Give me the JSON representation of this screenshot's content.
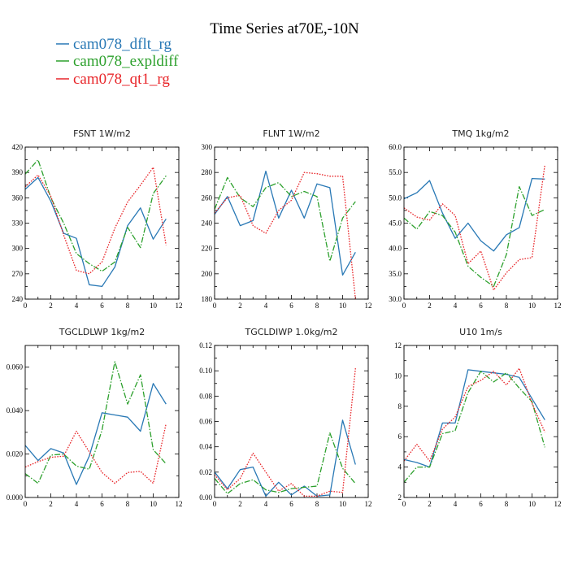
{
  "chart_data": {
    "title": "Time Series at70E,-10N",
    "legend": [
      {
        "label": "cam078_dflt_rg",
        "color": "#2878b5",
        "dash": "solid"
      },
      {
        "label": "cam078_expldiff",
        "color": "#2ca02c",
        "dash": "dashdot"
      },
      {
        "label": "cam078_qt1_rg",
        "color": "#e8262a",
        "dash": "dotted"
      }
    ],
    "panels": [
      {
        "type": "line",
        "title": "FSNT   1W/m2",
        "xlim": [
          0,
          12
        ],
        "xticks": [
          0,
          2,
          4,
          6,
          8,
          10,
          12
        ],
        "ylim": [
          240,
          420
        ],
        "yticks": [
          240,
          270,
          300,
          330,
          360,
          390,
          420
        ],
        "ytick_labels": [
          "240",
          "270",
          "300",
          "330",
          "360",
          "390",
          "420"
        ],
        "x": [
          0,
          1,
          2,
          3,
          4,
          5,
          6,
          7,
          8,
          9,
          10,
          11
        ],
        "series": [
          {
            "name": "cam078_dflt_rg",
            "values": [
              370,
              384,
              356,
              318,
              312,
              257,
              255,
              278,
              327,
              348,
              311,
              335
            ]
          },
          {
            "name": "cam078_expldiff",
            "values": [
              388,
              405,
              360,
              330,
              294,
              282,
              273,
              284,
              325,
              301,
              365,
              386
            ]
          },
          {
            "name": "cam078_qt1_rg",
            "values": [
              373,
              387,
              362,
              316,
              274,
              270,
              284,
              324,
              355,
              375,
              396,
              304
            ]
          }
        ]
      },
      {
        "type": "line",
        "title": "FLNT   1W/m2",
        "xlim": [
          0,
          12
        ],
        "xticks": [
          0,
          2,
          4,
          6,
          8,
          10,
          12
        ],
        "ylim": [
          180,
          300
        ],
        "yticks": [
          180,
          200,
          220,
          240,
          260,
          280,
          300
        ],
        "ytick_labels": [
          "180",
          "200",
          "220",
          "240",
          "260",
          "280",
          "300"
        ],
        "x": [
          0,
          1,
          2,
          3,
          4,
          5,
          6,
          7,
          8,
          9,
          10,
          11
        ],
        "series": [
          {
            "name": "cam078_dflt_rg",
            "values": [
              247,
              261,
              238,
              242,
              281,
              244,
              266,
              244,
              271,
              268,
              199,
              217
            ]
          },
          {
            "name": "cam078_expldiff",
            "values": [
              251,
              276,
              260,
              253,
              268,
              272,
              261,
              265,
              261,
              210,
              244,
              257
            ]
          },
          {
            "name": "cam078_qt1_rg",
            "values": [
              248,
              260,
              262,
              238,
              232,
              250,
              258,
              280,
              279,
              277,
              277,
              180
            ]
          }
        ]
      },
      {
        "type": "line",
        "title": "TMQ   1kg/m2",
        "xlim": [
          0,
          12
        ],
        "xticks": [
          0,
          2,
          4,
          6,
          8,
          10,
          12
        ],
        "ylim": [
          30,
          60
        ],
        "yticks": [
          30,
          35,
          40,
          45,
          50,
          55,
          60
        ],
        "ytick_labels": [
          "30.0",
          "35.0",
          "40.0",
          "45.0",
          "50.0",
          "55.0",
          "60.0"
        ],
        "x": [
          0,
          1,
          2,
          3,
          4,
          5,
          6,
          7,
          8,
          9,
          10,
          11
        ],
        "series": [
          {
            "name": "cam078_dflt_rg",
            "values": [
              49.8,
              51.0,
              53.4,
              47.0,
              42.0,
              45.0,
              41.5,
              39.5,
              42.7,
              44.1,
              53.8,
              53.7
            ]
          },
          {
            "name": "cam078_expldiff",
            "values": [
              46.0,
              43.8,
              47.3,
              46.5,
              43.2,
              36.5,
              34.3,
              32.5,
              38.8,
              52.2,
              46.5,
              47.7
            ]
          },
          {
            "name": "cam078_qt1_rg",
            "values": [
              48.0,
              46.2,
              45.6,
              48.8,
              46.5,
              37.0,
              39.5,
              31.8,
              35.2,
              37.8,
              38.2,
              56.5
            ]
          }
        ]
      },
      {
        "type": "line",
        "title": "TGCLDLWP   1kg/m2",
        "xlim": [
          0,
          12
        ],
        "xticks": [
          0,
          2,
          4,
          6,
          8,
          10,
          12
        ],
        "ylim": [
          0,
          0.07
        ],
        "yticks": [
          0,
          0.02,
          0.04,
          0.06
        ],
        "ytick_labels": [
          "0.000",
          "0.020",
          "0.040",
          "0.060"
        ],
        "x": [
          0,
          1,
          2,
          3,
          4,
          5,
          6,
          7,
          8,
          9,
          10,
          11
        ],
        "series": [
          {
            "name": "cam078_dflt_rg",
            "values": [
              0.024,
              0.017,
              0.0225,
              0.0205,
              0.006,
              0.019,
              0.039,
              0.038,
              0.037,
              0.0305,
              0.0525,
              0.043
            ]
          },
          {
            "name": "cam078_expldiff",
            "values": [
              0.011,
              0.0065,
              0.0195,
              0.02,
              0.0145,
              0.013,
              0.031,
              0.0625,
              0.043,
              0.0565,
              0.022,
              0.0155
            ]
          },
          {
            "name": "cam078_qt1_rg",
            "values": [
              0.014,
              0.0165,
              0.0185,
              0.019,
              0.0305,
              0.021,
              0.0115,
              0.0065,
              0.0115,
              0.012,
              0.0065,
              0.034
            ]
          }
        ]
      },
      {
        "type": "line",
        "title": "TGCLDIWP   1.0kg/m2",
        "xlim": [
          0,
          12
        ],
        "xticks": [
          0,
          2,
          4,
          6,
          8,
          10,
          12
        ],
        "ylim": [
          0,
          0.12
        ],
        "yticks": [
          0,
          0.02,
          0.04,
          0.06,
          0.08,
          0.1,
          0.12
        ],
        "ytick_labels": [
          "0.00",
          "0.02",
          "0.04",
          "0.06",
          "0.08",
          "0.10",
          "0.12"
        ],
        "x": [
          0,
          1,
          2,
          3,
          4,
          5,
          6,
          7,
          8,
          9,
          10,
          11
        ],
        "series": [
          {
            "name": "cam078_dflt_rg",
            "values": [
              0.02,
              0.007,
              0.022,
              0.024,
              0.001,
              0.012,
              0.002,
              0.009,
              0.001,
              0.002,
              0.061,
              0.026
            ]
          },
          {
            "name": "cam078_expldiff",
            "values": [
              0.015,
              0.003,
              0.011,
              0.014,
              0.006,
              0.004,
              0.007,
              0.008,
              0.009,
              0.051,
              0.023,
              0.011
            ]
          },
          {
            "name": "cam078_qt1_rg",
            "values": [
              0.018,
              0.006,
              0.015,
              0.035,
              0.02,
              0.005,
              0.011,
              0.001,
              0.001,
              0.005,
              0.004,
              0.102
            ]
          }
        ]
      },
      {
        "type": "line",
        "title": "U10   1m/s",
        "xlim": [
          0,
          12
        ],
        "xticks": [
          0,
          2,
          4,
          6,
          8,
          10,
          12
        ],
        "ylim": [
          2,
          12
        ],
        "yticks": [
          2,
          4,
          6,
          8,
          10,
          12
        ],
        "ytick_labels": [
          "2",
          "4",
          "6",
          "8",
          "10",
          "12"
        ],
        "x": [
          0,
          1,
          2,
          3,
          4,
          5,
          6,
          7,
          8,
          9,
          10,
          11
        ],
        "series": [
          {
            "name": "cam078_dflt_rg",
            "values": [
              4.5,
              4.3,
              4.0,
              6.9,
              6.9,
              10.4,
              10.3,
              10.2,
              10.1,
              9.9,
              8.5,
              7.1
            ]
          },
          {
            "name": "cam078_expldiff",
            "values": [
              3.0,
              4.0,
              4.0,
              6.2,
              6.4,
              8.9,
              10.3,
              9.6,
              10.2,
              9.2,
              8.3,
              5.3
            ]
          },
          {
            "name": "cam078_qt1_rg",
            "values": [
              4.4,
              5.5,
              4.4,
              6.5,
              7.3,
              9.3,
              9.7,
              10.3,
              9.4,
              10.5,
              8.2,
              6.3
            ]
          }
        ]
      }
    ]
  }
}
